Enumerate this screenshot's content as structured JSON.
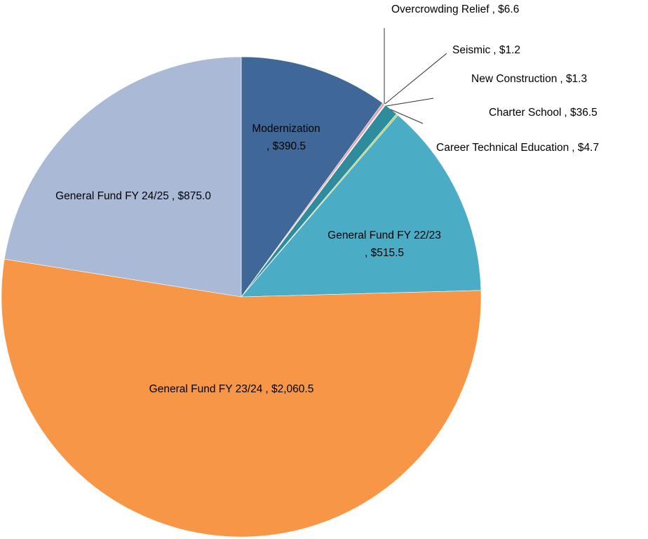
{
  "chart_data": {
    "type": "pie",
    "categories": [
      "Modernization",
      "Overcrowding Relief",
      "Seismic",
      "New Construction",
      "Charter School",
      "Career Technical Education",
      "General Fund FY 22/23",
      "General Fund FY 23/24",
      "General Fund FY 24/25"
    ],
    "values": [
      390.5,
      6.6,
      1.2,
      1.3,
      36.5,
      4.7,
      515.5,
      2060.5,
      875.0
    ],
    "value_labels": [
      ", $390.5",
      ", $6.6",
      ", $1.2",
      ", $1.3",
      ", $36.5",
      ", $4.7",
      ", $515.5",
      ", $2,060.5",
      ", $875.0"
    ],
    "colors": [
      "#3f6898",
      "#e8a3a8",
      "#8e7bb0",
      "#7f9fc9",
      "#2f8c9d",
      "#b5cc5e",
      "#4bacc6",
      "#f79646",
      "#a9b9d6"
    ]
  }
}
